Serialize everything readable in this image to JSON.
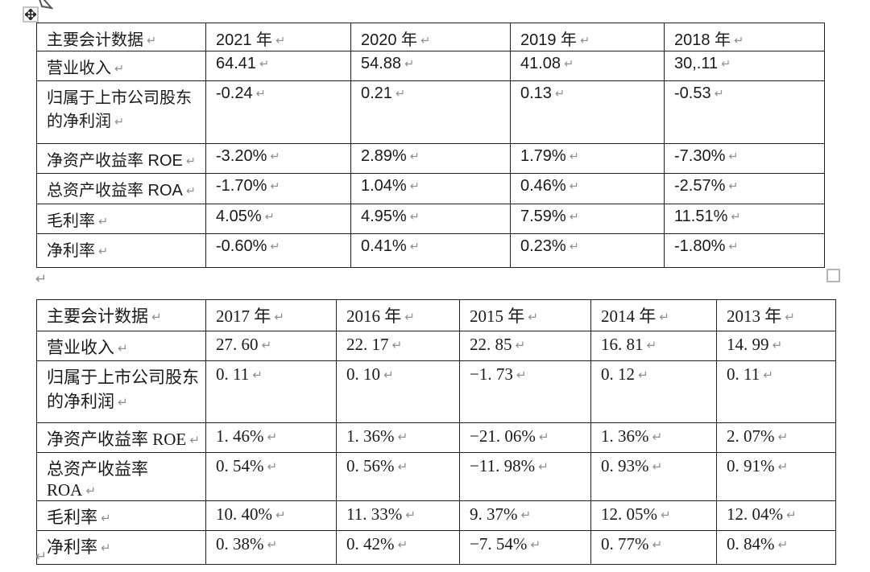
{
  "page": {
    "background": "#ffffff",
    "text_color": "#1a1a1a",
    "border_color": "#1f1f1f",
    "mark_color": "#8f8f8f"
  },
  "marks": {
    "cell_end": "↵",
    "paragraph": "↵"
  },
  "table_2021_2018": {
    "columns": [
      "主要会计数据",
      "2021 年",
      "2020 年",
      "2019 年",
      "2018 年"
    ],
    "rows": [
      [
        "营业收入",
        "64.41",
        "54.88",
        "41.08",
        "30,.11"
      ],
      [
        "归属于上市公司股东的净利润",
        "-0.24",
        "0.21",
        "0.13",
        "-0.53"
      ],
      [
        "净资产收益率 ROE",
        "-3.20%",
        "2.89%",
        "1.79%",
        "-7.30%"
      ],
      [
        "总资产收益率 ROA",
        "-1.70%",
        "1.04%",
        "0.46%",
        "-2.57%"
      ],
      [
        "毛利率",
        "4.05%",
        "4.95%",
        "7.59%",
        "11.51%"
      ],
      [
        "净利率",
        "-0.60%",
        "0.41%",
        "0.23%",
        "-1.80%"
      ]
    ]
  },
  "table_2017_2013": {
    "columns": [
      "主要会计数据",
      "2017 年",
      "2016 年",
      "2015 年",
      "2014 年",
      "2013 年"
    ],
    "rows": [
      [
        "营业收入",
        "27. 60",
        "22. 17",
        "22. 85",
        "16. 81",
        "14. 99"
      ],
      [
        "归属于上市公司股东的净利润",
        "0. 11",
        "0. 10",
        "−1. 73",
        "0. 12",
        "0. 11"
      ],
      [
        "净资产收益率 ROE",
        "1. 46%",
        "1. 36%",
        "−21. 06%",
        "1. 36%",
        "2. 07%"
      ],
      [
        "总资产收益率 ROA",
        "0. 54%",
        "0. 56%",
        "−11. 98%",
        "0. 93%",
        "0. 91%"
      ],
      [
        "毛利率",
        "10. 40%",
        "11. 33%",
        "9. 37%",
        "12. 05%",
        "12. 04%"
      ],
      [
        "净利率",
        "0. 38%",
        "0. 42%",
        "−7. 54%",
        "0. 77%",
        "0. 84%"
      ]
    ]
  }
}
